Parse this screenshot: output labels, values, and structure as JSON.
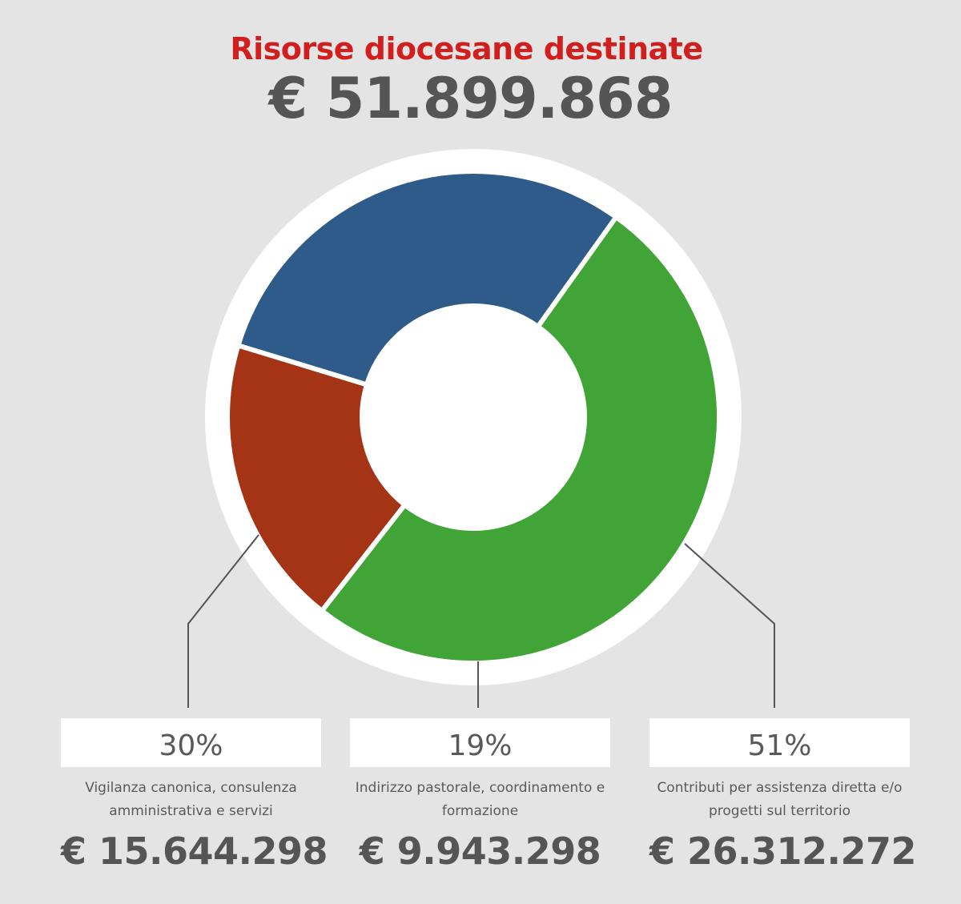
{
  "header": {
    "title": "Risorse diocesane destinate",
    "total": "€ 51.899.868"
  },
  "colors": {
    "title": "#d11f1f",
    "text": "#555555",
    "background": "#e4e4e4",
    "ring": "#ffffff"
  },
  "chart_data": {
    "type": "pie",
    "variant": "donut",
    "title": "Risorse diocesane destinate",
    "total": 51899868,
    "series": [
      {
        "percent_label": "30%",
        "value": 15644298,
        "amount_label": "€ 15.644.298",
        "description": "Vigilanza canonica, consulenza amministrativa e servizi",
        "color": "#2e5b89"
      },
      {
        "percent_label": "19%",
        "value": 9943298,
        "amount_label": "€ 9.943.298",
        "description": "Indirizzo pastorale, coordinamento e formazione",
        "color": "#a53316"
      },
      {
        "percent_label": "51%",
        "value": 26312272,
        "amount_label": "€ 26.312.272",
        "description": "Contributi per assistenza diretta e/o progetti sul territorio",
        "color": "#40a536"
      }
    ]
  }
}
